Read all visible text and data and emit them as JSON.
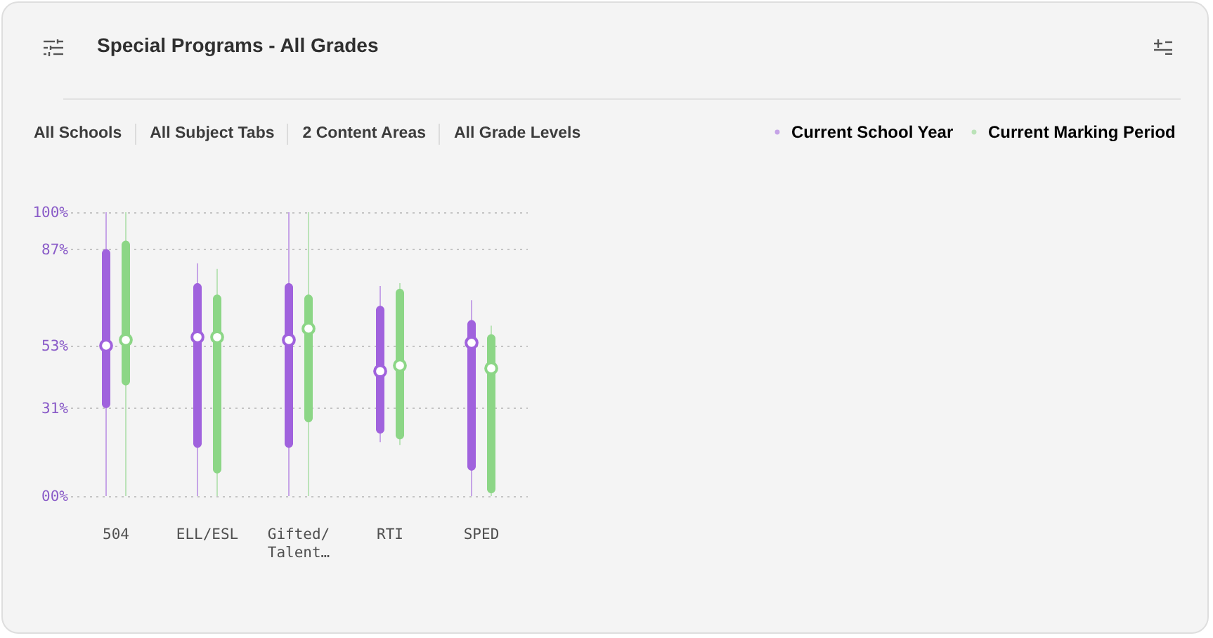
{
  "chart_data": {
    "type": "box",
    "title": "Special Programs - All Grades",
    "annotations": [
      "All Schools",
      "All Subject Tabs",
      "2 Content Areas",
      "All Grade Levels"
    ],
    "categories": [
      "504",
      "ELL/ESL",
      "Gifted/Talent…",
      "RTI",
      "SPED"
    ],
    "series": [
      {
        "name": "Current School Year",
        "color": "#a062dd",
        "boxes": [
          {
            "low": 0,
            "q1": 31,
            "median": 53,
            "q3": 87,
            "high": 100
          },
          {
            "low": 0,
            "q1": 17,
            "median": 56,
            "q3": 75,
            "high": 82
          },
          {
            "low": 0,
            "q1": 17,
            "median": 55,
            "q3": 75,
            "high": 100
          },
          {
            "low": 19,
            "q1": 22,
            "median": 44,
            "q3": 67,
            "high": 74
          },
          {
            "low": 0,
            "q1": 9,
            "median": 54,
            "q3": 62,
            "high": 69
          }
        ]
      },
      {
        "name": "Current Marking Period",
        "color": "#8cd686",
        "boxes": [
          {
            "low": 0,
            "q1": 39,
            "median": 55,
            "q3": 90,
            "high": 100
          },
          {
            "low": 0,
            "q1": 8,
            "median": 56,
            "q3": 71,
            "high": 80
          },
          {
            "low": 0,
            "q1": 26,
            "median": 59,
            "q3": 71,
            "high": 100
          },
          {
            "low": 18,
            "q1": 20,
            "median": 46,
            "q3": 73,
            "high": 75
          },
          {
            "low": 0,
            "q1": 1,
            "median": 45,
            "q3": 57,
            "high": 60
          }
        ]
      }
    ],
    "ylim": [
      0,
      100
    ],
    "yticks": [
      {
        "value": 0,
        "label": "00%"
      },
      {
        "value": 31,
        "label": "31%"
      },
      {
        "value": 53,
        "label": "53%"
      },
      {
        "value": 87,
        "label": "87%"
      },
      {
        "value": 100,
        "label": "100%"
      }
    ],
    "grid": "y",
    "legend": "top right"
  }
}
